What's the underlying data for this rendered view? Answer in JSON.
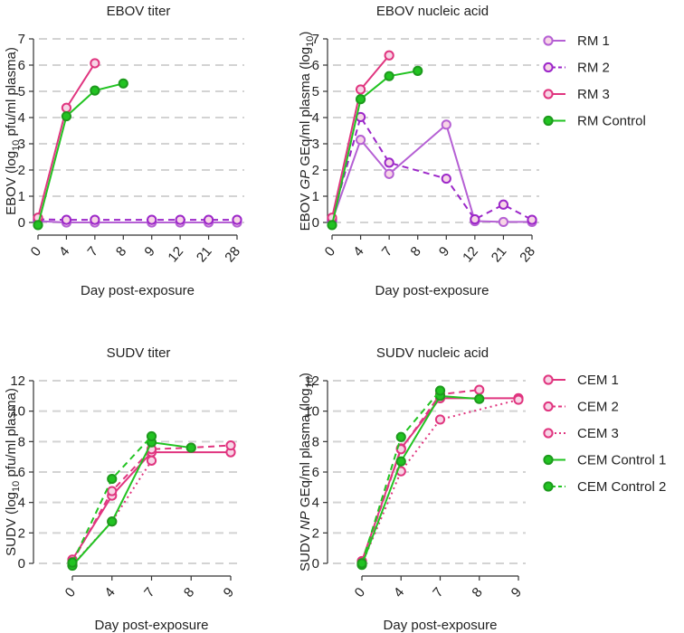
{
  "chart_data": [
    {
      "id": "ebov-titer",
      "type": "line",
      "title": "EBOV titer",
      "xlabel": "Day post-exposure",
      "ylabel": {
        "pre": "EBOV (log",
        "sub": "10",
        "post": " pfu/ml plasma)"
      },
      "categories": [
        "0",
        "4",
        "7",
        "8",
        "9",
        "12",
        "21",
        "28"
      ],
      "ylim": [
        0,
        7
      ],
      "yticks": [
        0,
        1,
        2,
        3,
        4,
        5,
        6,
        7
      ],
      "grid": true,
      "series": [
        {
          "name": "RM 1",
          "color": "#b560d4",
          "dash": "solid",
          "fill": "hollow",
          "values": [
            0.05,
            0,
            0,
            null,
            0,
            0,
            0,
            0
          ]
        },
        {
          "name": "RM 2",
          "color": "#9c27c9",
          "dash": "dashed",
          "fill": "hollow",
          "values": [
            0.12,
            0.1,
            0.1,
            null,
            0.1,
            0.1,
            0.1,
            0.1
          ]
        },
        {
          "name": "RM 3",
          "color": "#e0357f",
          "dash": "solid",
          "fill": "hollow",
          "values": [
            0.18,
            4.37,
            6.07,
            null,
            null,
            null,
            null,
            null
          ]
        },
        {
          "name": "RM Control",
          "color": "#22c322",
          "dash": "solid",
          "fill": "filled",
          "values": [
            -0.1,
            4.05,
            5.03,
            5.3,
            null,
            null,
            null,
            null
          ]
        }
      ]
    },
    {
      "id": "ebov-na",
      "type": "line",
      "title": "EBOV nucleic acid",
      "xlabel": "Day post-exposure",
      "ylabel": {
        "pre": "EBOV ",
        "ital": "GP",
        "mid": " GEq/ml plasma (log",
        "sub": "10",
        "post": ")"
      },
      "categories": [
        "0",
        "4",
        "7",
        "8",
        "9",
        "12",
        "21",
        "28"
      ],
      "ylim": [
        0,
        7
      ],
      "yticks": [
        0,
        1,
        2,
        3,
        4,
        5,
        6,
        7
      ],
      "grid": true,
      "series": [
        {
          "name": "RM 1",
          "color": "#b560d4",
          "dash": "solid",
          "fill": "hollow",
          "values": [
            0.05,
            3.15,
            1.85,
            null,
            3.73,
            0.05,
            0.02,
            0.02
          ]
        },
        {
          "name": "RM 2",
          "color": "#9c27c9",
          "dash": "dashed",
          "fill": "hollow",
          "values": [
            0.12,
            4.02,
            2.28,
            null,
            1.67,
            0.12,
            0.68,
            0.1
          ]
        },
        {
          "name": "RM 3",
          "color": "#e0357f",
          "dash": "solid",
          "fill": "hollow",
          "values": [
            0.18,
            5.07,
            6.37,
            null,
            null,
            null,
            null,
            null
          ]
        },
        {
          "name": "RM Control",
          "color": "#22c322",
          "dash": "solid",
          "fill": "filled",
          "values": [
            -0.1,
            4.7,
            5.58,
            5.78,
            null,
            null,
            null,
            null
          ]
        }
      ]
    },
    {
      "id": "sudv-titer",
      "type": "line",
      "title": "SUDV titer",
      "xlabel": "Day post-exposure",
      "ylabel": {
        "pre": "SUDV (log",
        "sub": "10",
        "post": " pfu/ml plasma)"
      },
      "categories": [
        "0",
        "4",
        "7",
        "8",
        "9"
      ],
      "ylim": [
        0,
        12
      ],
      "yticks": [
        0,
        2,
        4,
        6,
        8,
        10,
        12
      ],
      "grid": true,
      "series": [
        {
          "name": "CEM 1",
          "color": "#e0357f",
          "dash": "solid",
          "fill": "hollow",
          "values": [
            0.25,
            4.45,
            7.3,
            null,
            7.3
          ]
        },
        {
          "name": "CEM 2",
          "color": "#e0357f",
          "dash": "dashed",
          "fill": "hollow",
          "values": [
            0.1,
            4.75,
            7.5,
            7.6,
            7.75
          ]
        },
        {
          "name": "CEM 3",
          "color": "#e0357f",
          "dash": "dotted",
          "fill": "hollow",
          "values": [
            -0.1,
            2.75,
            6.75,
            null,
            null
          ]
        },
        {
          "name": "CEM Control 1",
          "color": "#22c322",
          "dash": "solid",
          "fill": "filled",
          "values": [
            -0.15,
            2.75,
            7.95,
            7.6,
            null
          ]
        },
        {
          "name": "CEM Control 2",
          "color": "#22c322",
          "dash": "dashed",
          "fill": "filled",
          "values": [
            0.05,
            5.55,
            8.35,
            null,
            null
          ]
        }
      ]
    },
    {
      "id": "sudv-na",
      "type": "line",
      "title": "SUDV nucleic acid",
      "xlabel": "Day post-exposure",
      "ylabel": {
        "pre": "SUDV ",
        "ital": "NP",
        "mid": " GEq/ml plasma (log",
        "sub": "10",
        "post": ")"
      },
      "categories": [
        "0",
        "4",
        "7",
        "8",
        "9"
      ],
      "ylim": [
        0,
        12
      ],
      "yticks": [
        0,
        2,
        4,
        6,
        8,
        10,
        12
      ],
      "grid": true,
      "series": [
        {
          "name": "CEM 1",
          "color": "#e0357f",
          "dash": "solid",
          "fill": "hollow",
          "values": [
            0.15,
            7.55,
            10.85,
            null,
            10.85
          ]
        },
        {
          "name": "CEM 2",
          "color": "#e0357f",
          "dash": "dashed",
          "fill": "hollow",
          "values": [
            0.05,
            7.5,
            11.1,
            11.4,
            null
          ]
        },
        {
          "name": "CEM 3",
          "color": "#e0357f",
          "dash": "dotted",
          "fill": "hollow",
          "values": [
            -0.05,
            6.05,
            9.45,
            null,
            10.75
          ]
        },
        {
          "name": "CEM Control 1",
          "color": "#22c322",
          "dash": "solid",
          "fill": "filled",
          "values": [
            -0.1,
            6.7,
            11.0,
            10.8,
            null
          ]
        },
        {
          "name": "CEM Control 2",
          "color": "#22c322",
          "dash": "dashed",
          "fill": "filled",
          "values": [
            0.0,
            8.3,
            11.35,
            null,
            null
          ]
        }
      ]
    }
  ],
  "legends": [
    {
      "id": "legend-rm",
      "entries": [
        {
          "label": "RM 1",
          "color": "#b560d4",
          "dash": "solid",
          "fill": "hollow"
        },
        {
          "label": "RM 2",
          "color": "#9c27c9",
          "dash": "dashed",
          "fill": "hollow"
        },
        {
          "label": "RM 3",
          "color": "#e0357f",
          "dash": "solid",
          "fill": "hollow"
        },
        {
          "label": "RM Control",
          "color": "#22c322",
          "dash": "solid",
          "fill": "filled"
        }
      ]
    },
    {
      "id": "legend-cem",
      "entries": [
        {
          "label": "CEM 1",
          "color": "#e0357f",
          "dash": "solid",
          "fill": "hollow"
        },
        {
          "label": "CEM 2",
          "color": "#e0357f",
          "dash": "dashed",
          "fill": "hollow"
        },
        {
          "label": "CEM 3",
          "color": "#e0357f",
          "dash": "dotted",
          "fill": "hollow"
        },
        {
          "label": "CEM Control 1",
          "color": "#22c322",
          "dash": "solid",
          "fill": "filled"
        },
        {
          "label": "CEM Control 2",
          "color": "#22c322",
          "dash": "dashed",
          "fill": "filled"
        }
      ]
    }
  ]
}
